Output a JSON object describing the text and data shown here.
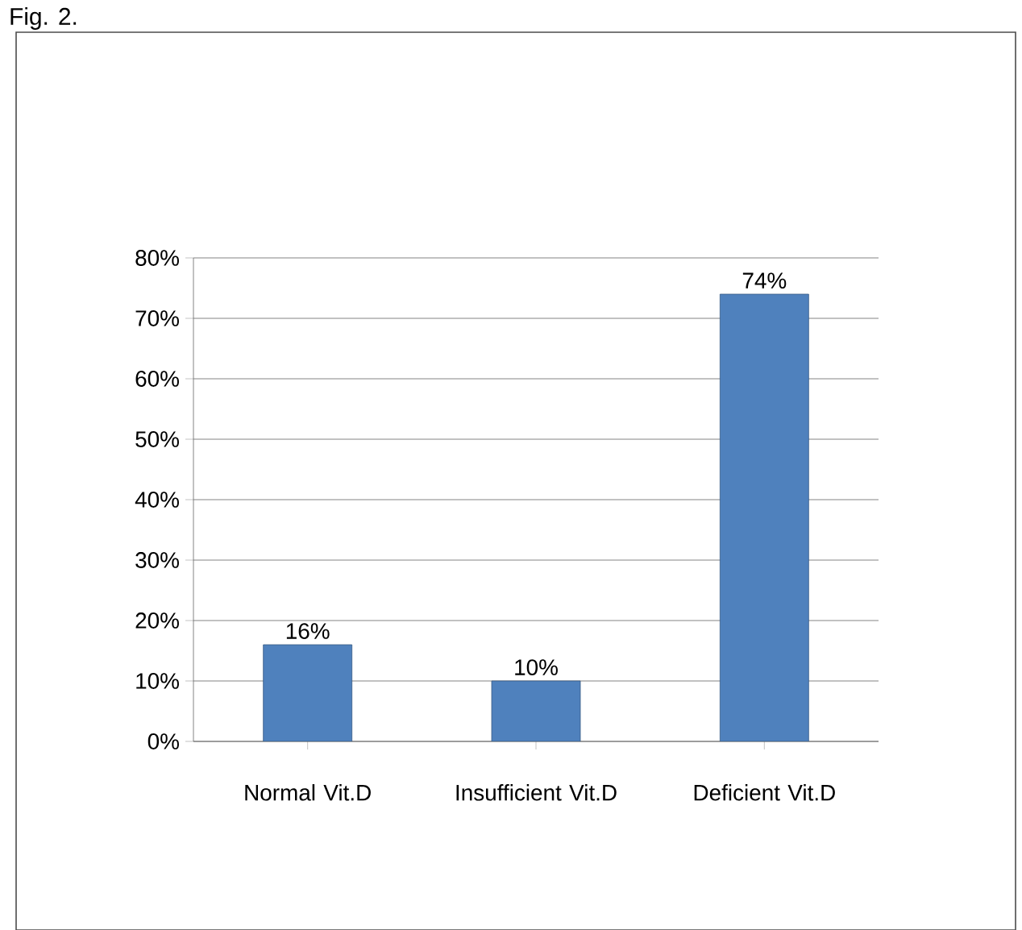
{
  "chart_data": {
    "type": "bar",
    "title": "Fig. 2.",
    "categories": [
      "Normal Vit.D",
      "Insufficient Vit.D",
      "Deficient Vit.D"
    ],
    "values": [
      16,
      10,
      74
    ],
    "color": "#4f81bd",
    "value_labels": [
      "16%",
      "10%",
      "74%"
    ],
    "ylim": [
      0,
      80
    ],
    "yticks": [
      {
        "value": 0,
        "label": "0%"
      },
      {
        "value": 10,
        "label": "10%"
      },
      {
        "value": 20,
        "label": "20%"
      },
      {
        "value": 30,
        "label": "30%"
      },
      {
        "value": 40,
        "label": "40%"
      },
      {
        "value": 50,
        "label": "50%"
      },
      {
        "value": 60,
        "label": "60%"
      },
      {
        "value": 70,
        "label": "70%"
      },
      {
        "value": 80,
        "label": "80%"
      }
    ],
    "grid": "y"
  }
}
